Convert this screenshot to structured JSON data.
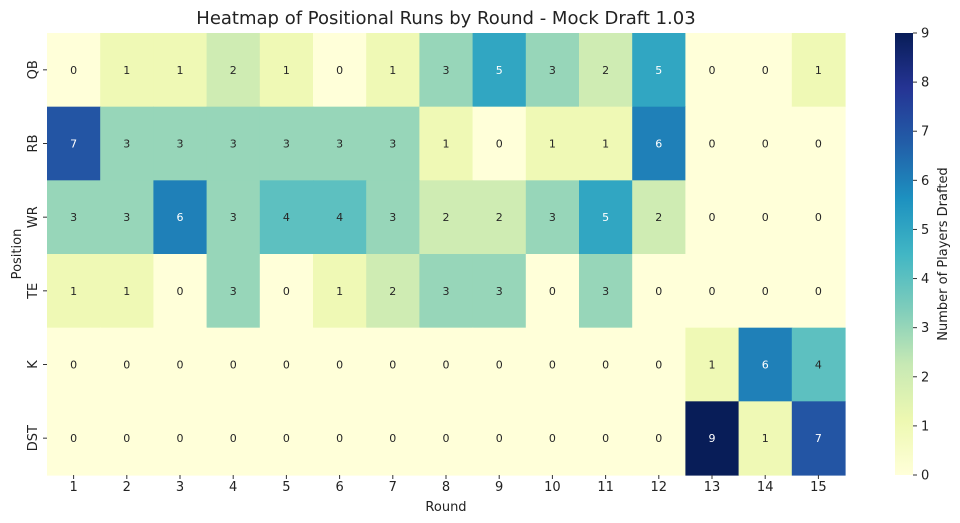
{
  "chart_data": {
    "type": "heatmap",
    "title": "Heatmap of Positional Runs by Round - Mock Draft 1.03",
    "xlabel": "Round",
    "ylabel": "Position",
    "x": [
      "1",
      "2",
      "3",
      "4",
      "5",
      "6",
      "7",
      "8",
      "9",
      "10",
      "11",
      "12",
      "13",
      "14",
      "15"
    ],
    "y": [
      "QB",
      "RB",
      "WR",
      "TE",
      "K",
      "DST"
    ],
    "values": [
      [
        0,
        1,
        1,
        2,
        1,
        0,
        1,
        3,
        5,
        3,
        2,
        5,
        0,
        0,
        1
      ],
      [
        7,
        3,
        3,
        3,
        3,
        3,
        3,
        1,
        0,
        1,
        1,
        6,
        0,
        0,
        0
      ],
      [
        3,
        3,
        6,
        3,
        4,
        4,
        3,
        2,
        2,
        3,
        5,
        2,
        0,
        0,
        0
      ],
      [
        1,
        1,
        0,
        3,
        0,
        1,
        2,
        3,
        3,
        0,
        3,
        0,
        0,
        0,
        0
      ],
      [
        0,
        0,
        0,
        0,
        0,
        0,
        0,
        0,
        0,
        0,
        0,
        0,
        1,
        6,
        4
      ],
      [
        0,
        0,
        0,
        0,
        0,
        0,
        0,
        0,
        0,
        0,
        0,
        0,
        9,
        1,
        7
      ]
    ],
    "colorbar": {
      "label": "Number of Players Drafted",
      "range": [
        0,
        9
      ],
      "ticks": [
        "0",
        "1",
        "2",
        "3",
        "4",
        "5",
        "6",
        "7",
        "8",
        "9"
      ],
      "colormap": "YlGnBu"
    },
    "annotate": true
  }
}
